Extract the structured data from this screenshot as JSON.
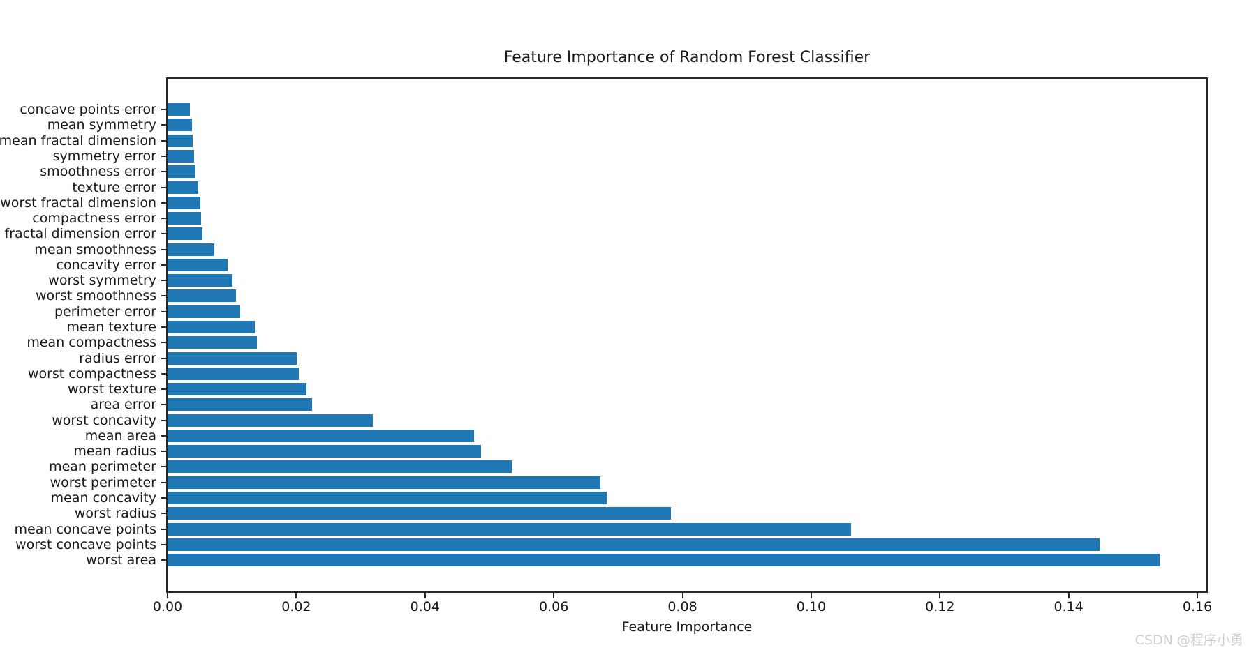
{
  "title": "Feature Importance of Random Forest Classifier",
  "watermark": "CSDN @程序小勇",
  "chart_data": {
    "type": "bar",
    "orientation": "horizontal",
    "title": "Feature Importance of Random Forest Classifier",
    "xlabel": "Feature Importance",
    "ylabel": "",
    "xlim": [
      0,
      0.1614
    ],
    "grid": false,
    "legend": false,
    "bar_color": "#1f77b4",
    "spine_color": "#262626",
    "x_tick_labels": [
      "0.00",
      "0.02",
      "0.04",
      "0.06",
      "0.08",
      "0.10",
      "0.12",
      "0.14",
      "0.16"
    ],
    "x_tick_values": [
      0.0,
      0.02,
      0.04,
      0.06,
      0.08,
      0.1,
      0.12,
      0.14,
      0.16
    ],
    "categories": [
      "concave points error",
      "mean symmetry",
      "mean fractal dimension",
      "symmetry error",
      "smoothness error",
      "texture error",
      "worst fractal dimension",
      "compactness error",
      "fractal dimension error",
      "mean smoothness",
      "concavity error",
      "worst symmetry",
      "worst smoothness",
      "perimeter error",
      "mean texture",
      "mean compactness",
      "radius error",
      "worst compactness",
      "worst texture",
      "area error",
      "worst concavity",
      "mean area",
      "mean radius",
      "mean perimeter",
      "worst perimeter",
      "mean concavity",
      "worst radius",
      "mean concave points",
      "worst concave points",
      "worst area"
    ],
    "values": [
      0.0035,
      0.0038,
      0.0039,
      0.0041,
      0.0043,
      0.0048,
      0.0051,
      0.0052,
      0.0054,
      0.0073,
      0.0093,
      0.0101,
      0.0106,
      0.0113,
      0.0136,
      0.0139,
      0.0201,
      0.0204,
      0.0216,
      0.0224,
      0.0319,
      0.0476,
      0.0487,
      0.0535,
      0.0672,
      0.0682,
      0.0782,
      0.1062,
      0.1448,
      0.1541
    ]
  }
}
